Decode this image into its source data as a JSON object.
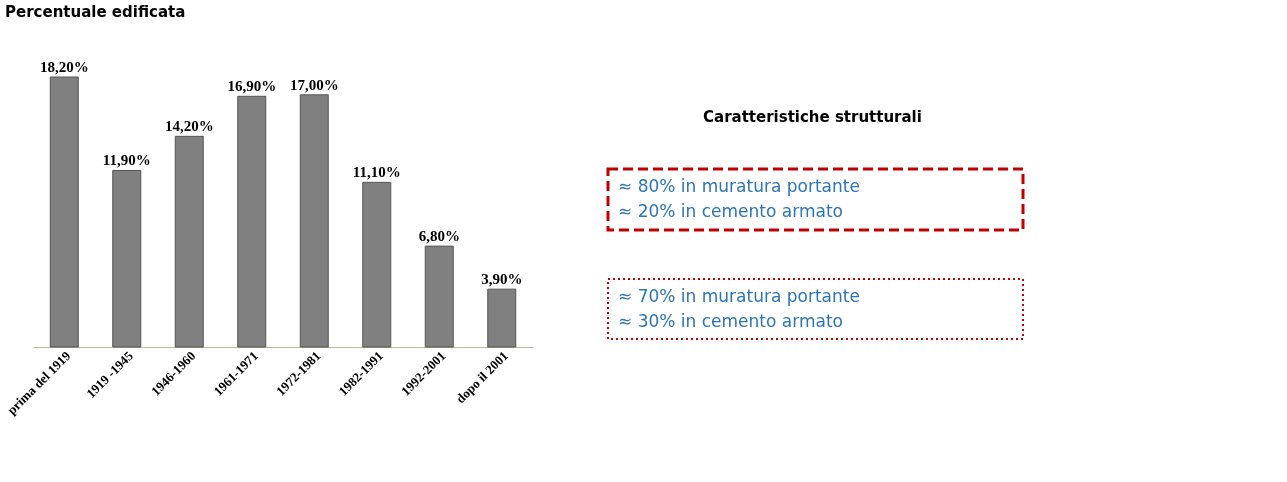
{
  "chart_data": {
    "type": "bar",
    "title": "Percentuale edificata",
    "categories": [
      "prima del 1919",
      "1919 -1945",
      "1946-1960",
      "1961-1971",
      "1972-1981",
      "1982-1991",
      "1992-2001",
      "dopo il 2001"
    ],
    "annotations": [
      "Caratteristiche strutturali",
      "≈ 80% in muratura portante",
      "≈ 20% in cemento armato",
      "≈ 70% in muratura portante",
      "≈ 30% in cemento armato"
    ],
    "values": [
      18.2,
      11.9,
      14.2,
      16.9,
      17.0,
      11.1,
      6.8,
      3.9
    ],
    "value_labels": [
      "18,20%",
      "11,90%",
      "14,20%",
      "16,90%",
      "17,00%",
      "11,10%",
      "6,80%",
      "3,90%"
    ],
    "color": "#808080"
  }
}
